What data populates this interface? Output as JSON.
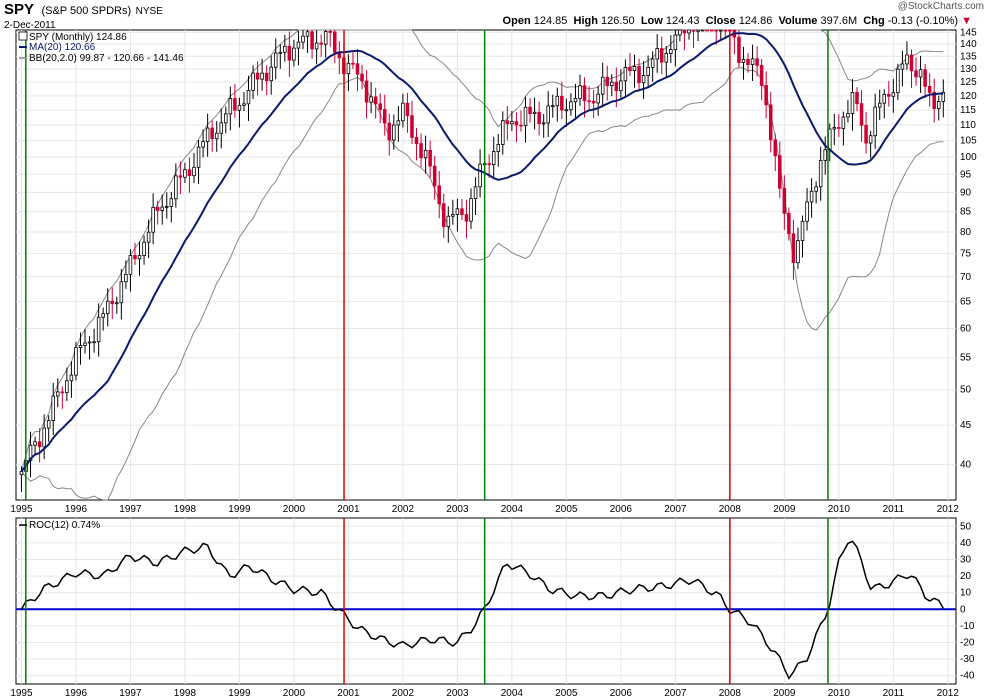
{
  "header": {
    "ticker": "SPY",
    "name": "(S&P 500 SPDRs)",
    "exchange": "NYSE",
    "date": "2-Dec-2011",
    "watermark": "@StockCharts.com",
    "open_label": "Open",
    "open": "124.85",
    "high_label": "High",
    "high": "126.50",
    "low_label": "Low",
    "low": "124.43",
    "close_label": "Close",
    "close": "124.86",
    "volume_label": "Volume",
    "volume": "397.6M",
    "chg_label": "Chg",
    "chg": "-0.13 (-0.10%)"
  },
  "colors": {
    "up": "#000000",
    "down": "#cc0033",
    "ma": "#0a1a6e",
    "bb": "#888888",
    "roc": "#000000",
    "zero": "#0000cc",
    "buy_line": "#008000",
    "sell_line": "#dd0000"
  },
  "chart_data": [
    {
      "type": "candlestick",
      "legend": {
        "price": "SPY (Monthly) 124.86",
        "ma": "MA(20) 120.66",
        "bb": "BB(20,2.0) 99.87 - 120.66 - 141.46"
      },
      "x_ticks": [
        "1995",
        "1996",
        "1997",
        "1998",
        "1999",
        "2000",
        "2001",
        "2002",
        "2003",
        "2004",
        "2005",
        "2006",
        "2007",
        "2008",
        "2009",
        "2010",
        "2011",
        "2012"
      ],
      "y_scale": "log",
      "ylim": [
        36,
        146
      ],
      "y_ticks": [
        40,
        45,
        50,
        55,
        60,
        65,
        70,
        75,
        80,
        85,
        90,
        95,
        100,
        105,
        110,
        115,
        120,
        125,
        130,
        135,
        140,
        145
      ],
      "price_path": [
        [
          1995.0,
          39
        ],
        [
          1995.5,
          46
        ],
        [
          1996.0,
          55
        ],
        [
          1996.5,
          62
        ],
        [
          1997.0,
          72
        ],
        [
          1997.5,
          85
        ],
        [
          1998.0,
          95
        ],
        [
          1998.5,
          108
        ],
        [
          1999.0,
          118
        ],
        [
          1999.5,
          130
        ],
        [
          2000.0,
          140
        ],
        [
          2000.6,
          143
        ],
        [
          2000.9,
          133
        ],
        [
          2001.3,
          124
        ],
        [
          2001.7,
          108
        ],
        [
          2002.0,
          114
        ],
        [
          2002.4,
          100
        ],
        [
          2002.8,
          82
        ],
        [
          2003.2,
          86
        ],
        [
          2003.5,
          98
        ],
        [
          2004.0,
          112
        ],
        [
          2004.5,
          113
        ],
        [
          2005.0,
          118
        ],
        [
          2005.5,
          120
        ],
        [
          2006.0,
          127
        ],
        [
          2006.5,
          130
        ],
        [
          2007.0,
          142
        ],
        [
          2007.4,
          152
        ],
        [
          2007.8,
          152
        ],
        [
          2008.2,
          136
        ],
        [
          2008.6,
          126
        ],
        [
          2008.9,
          90
        ],
        [
          2009.2,
          74
        ],
        [
          2009.6,
          96
        ],
        [
          2010.0,
          112
        ],
        [
          2010.3,
          118
        ],
        [
          2010.5,
          106
        ],
        [
          2010.8,
          118
        ],
        [
          2011.2,
          132
        ],
        [
          2011.5,
          130
        ],
        [
          2011.7,
          114
        ],
        [
          2011.95,
          125
        ]
      ]
    },
    {
      "type": "line",
      "legend": "ROC(12) 0.74%",
      "ylim": [
        -45,
        55
      ],
      "y_ticks": [
        -40,
        -30,
        -20,
        -10,
        0,
        10,
        20,
        30,
        40,
        50
      ],
      "roc_path": [
        [
          1995.0,
          0
        ],
        [
          1995.4,
          12
        ],
        [
          1996.0,
          22
        ],
        [
          1996.5,
          20
        ],
        [
          1997.0,
          32
        ],
        [
          1997.5,
          28
        ],
        [
          1998.0,
          35
        ],
        [
          1998.4,
          38
        ],
        [
          1998.8,
          20
        ],
        [
          1999.2,
          26
        ],
        [
          1999.6,
          18
        ],
        [
          2000.0,
          12
        ],
        [
          2000.5,
          10
        ],
        [
          2000.8,
          0
        ],
        [
          2001.2,
          -12
        ],
        [
          2001.6,
          -18
        ],
        [
          2002.0,
          -22
        ],
        [
          2002.5,
          -18
        ],
        [
          2003.0,
          -20
        ],
        [
          2003.3,
          -10
        ],
        [
          2003.5,
          0
        ],
        [
          2003.9,
          28
        ],
        [
          2004.3,
          22
        ],
        [
          2004.7,
          12
        ],
        [
          2005.2,
          8
        ],
        [
          2005.7,
          8
        ],
        [
          2006.2,
          12
        ],
        [
          2006.8,
          14
        ],
        [
          2007.3,
          18
        ],
        [
          2007.8,
          8
        ],
        [
          2008.0,
          0
        ],
        [
          2008.4,
          -8
        ],
        [
          2008.8,
          -25
        ],
        [
          2009.1,
          -40
        ],
        [
          2009.4,
          -30
        ],
        [
          2009.7,
          -8
        ],
        [
          2009.8,
          0
        ],
        [
          2010.0,
          28
        ],
        [
          2010.2,
          45
        ],
        [
          2010.4,
          30
        ],
        [
          2010.6,
          12
        ],
        [
          2010.9,
          15
        ],
        [
          2011.3,
          22
        ],
        [
          2011.6,
          8
        ],
        [
          2011.95,
          1
        ]
      ],
      "zero_line": 0
    }
  ],
  "signals": {
    "buy_dates": [
      1995.08,
      2003.5,
      2009.8
    ],
    "sell_dates": [
      2000.92,
      2008.0
    ]
  }
}
